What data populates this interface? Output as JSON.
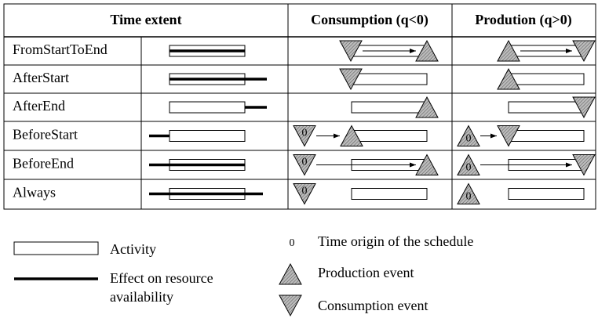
{
  "table": {
    "headers": [
      "Time extent",
      "Consumption (q<0)",
      "Prodution (q>0)"
    ],
    "rows": [
      "FromStartToEnd",
      "AfterStart",
      "AfterEnd",
      "BeforeStart",
      "BeforeEnd",
      "Always"
    ]
  },
  "origin_symbol": "0",
  "legend": {
    "activity": "Activity",
    "effect": [
      "Effect on resource",
      "availability"
    ],
    "origin": "Time origin of the schedule",
    "production": "Production event",
    "consumption": "Consumption event"
  }
}
